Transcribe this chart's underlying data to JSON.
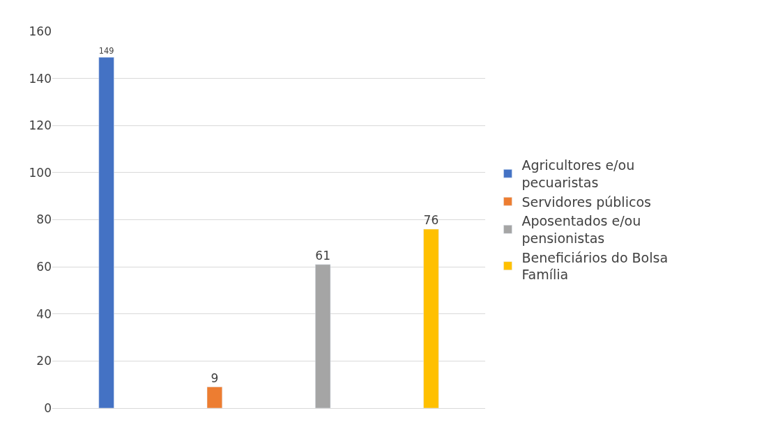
{
  "chart_data": {
    "type": "bar",
    "categories": [
      null,
      null,
      null,
      null
    ],
    "series": [
      {
        "name": "Agricultores e/ou pecuaristas",
        "color": "#4472c4",
        "values": [
          149,
          null,
          null,
          null
        ]
      },
      {
        "name": "Servidores públicos",
        "color": "#ed7d31",
        "values": [
          null,
          9,
          null,
          null
        ]
      },
      {
        "name": "Aposentados e/ou pensionistas",
        "color": "#a5a5a5",
        "values": [
          null,
          null,
          61,
          null
        ]
      },
      {
        "name": "Beneficiários do Bolsa Família",
        "color": "#ffc000",
        "values": [
          null,
          null,
          null,
          76
        ]
      }
    ],
    "ylim": [
      0,
      160
    ],
    "yticks": [
      0,
      20,
      40,
      60,
      80,
      100,
      120,
      140,
      160
    ],
    "grid": "y",
    "legend": "right",
    "data_labels": true
  }
}
